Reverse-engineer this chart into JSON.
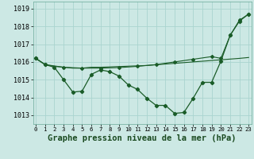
{
  "background_color": "#cce8e4",
  "grid_color": "#aad4cf",
  "line_color": "#1a5c28",
  "xlabel": "Graphe pression niveau de la mer (hPa)",
  "tick_fontsize": 6,
  "ylim": [
    1012.5,
    1019.4
  ],
  "xlim": [
    -0.3,
    23.3
  ],
  "yticks": [
    1013,
    1014,
    1015,
    1016,
    1017,
    1018,
    1019
  ],
  "xticks": [
    0,
    1,
    2,
    3,
    4,
    5,
    6,
    7,
    8,
    9,
    10,
    11,
    12,
    13,
    14,
    15,
    16,
    17,
    18,
    19,
    20,
    21,
    22,
    23
  ],
  "line_flat_x": [
    0,
    1,
    2,
    3,
    4,
    5,
    6,
    7,
    8,
    9,
    10,
    11,
    12,
    13,
    14,
    15,
    16,
    17,
    18,
    19,
    20,
    21,
    22,
    23
  ],
  "line_flat_y": [
    1016.2,
    1015.85,
    1015.75,
    1015.7,
    1015.65,
    1015.65,
    1015.7,
    1015.7,
    1015.72,
    1015.74,
    1015.76,
    1015.78,
    1015.8,
    1015.84,
    1015.88,
    1015.92,
    1015.96,
    1016.0,
    1016.04,
    1016.08,
    1016.12,
    1016.16,
    1016.2,
    1016.25
  ],
  "line_diag_x": [
    0,
    1,
    3,
    5,
    7,
    9,
    11,
    13,
    15,
    17,
    19,
    20,
    21,
    22,
    23
  ],
  "line_diag_y": [
    1016.2,
    1015.85,
    1015.7,
    1015.65,
    1015.65,
    1015.68,
    1015.75,
    1015.85,
    1016.0,
    1016.15,
    1016.3,
    1016.2,
    1017.5,
    1018.35,
    1018.7
  ],
  "line_wavy_x": [
    0,
    1,
    2,
    3,
    4,
    5,
    6,
    7,
    8,
    9,
    10,
    11,
    12,
    13,
    14,
    15,
    16,
    17,
    18,
    19,
    20,
    21,
    22,
    23
  ],
  "line_wavy_y": [
    1016.2,
    1015.85,
    1015.7,
    1015.0,
    1014.3,
    1014.35,
    1015.3,
    1015.55,
    1015.45,
    1015.2,
    1014.7,
    1014.45,
    1013.95,
    1013.55,
    1013.55,
    1013.1,
    1013.15,
    1013.95,
    1014.85,
    1014.85,
    1016.05,
    1017.5,
    1018.3,
    1018.7
  ]
}
